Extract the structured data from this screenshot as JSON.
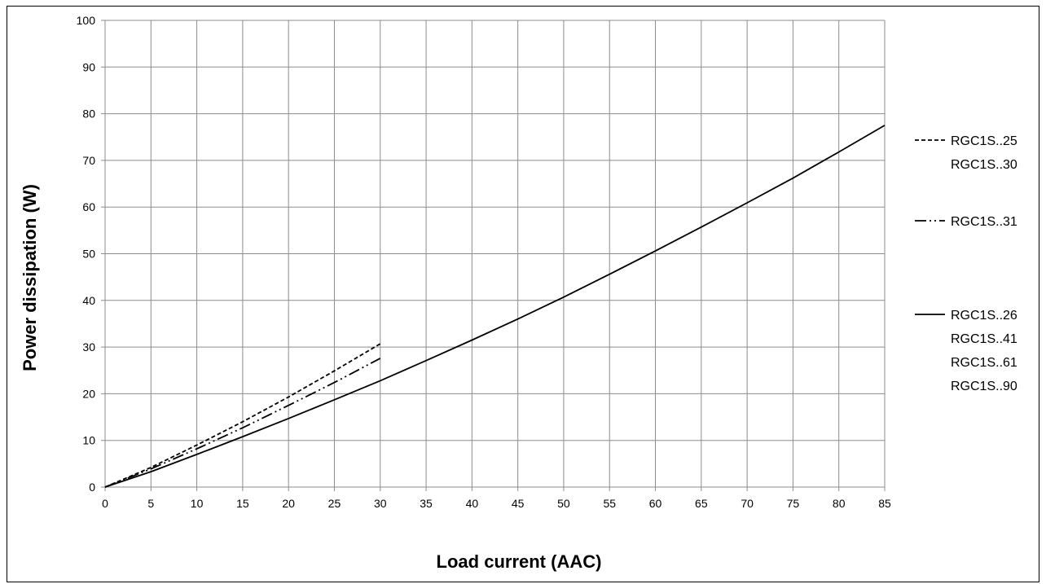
{
  "chart_data": {
    "type": "line",
    "title": "",
    "xlabel": "Load current (AAC)",
    "ylabel": "Power dissipation (W)",
    "xlim": [
      0,
      85
    ],
    "ylim": [
      0,
      100
    ],
    "x_ticks": [
      "0",
      "5",
      "10",
      "15",
      "20",
      "25",
      "30",
      "35",
      "40",
      "45",
      "50",
      "55",
      "60",
      "65",
      "70",
      "75",
      "80",
      "85"
    ],
    "y_ticks": [
      "0",
      "10",
      "20",
      "30",
      "40",
      "50",
      "60",
      "70",
      "80",
      "90",
      "100"
    ],
    "grid": true,
    "legend_position": "right",
    "series": [
      {
        "style": "dashed",
        "labels": [
          "RGC1S..25",
          "RGC1S..30"
        ],
        "x": [
          0,
          5,
          10,
          15,
          20,
          25,
          30
        ],
        "y": [
          0,
          4.2,
          9.0,
          14.0,
          19.3,
          24.9,
          30.7
        ]
      },
      {
        "style": "dash-dot-dot",
        "labels": [
          "RGC1S..31"
        ],
        "x": [
          0,
          5,
          10,
          15,
          20,
          25,
          30
        ],
        "y": [
          0,
          3.9,
          8.2,
          12.7,
          17.5,
          22.4,
          27.6
        ]
      },
      {
        "style": "solid",
        "labels": [
          "RGC1S..26",
          "RGC1S..41",
          "RGC1S..61",
          "RGC1S..90"
        ],
        "x": [
          0,
          5,
          10,
          15,
          20,
          25,
          30,
          35,
          40,
          45,
          50,
          55,
          60,
          65,
          70,
          75,
          80,
          85
        ],
        "y": [
          0,
          3.3,
          7.0,
          10.8,
          14.7,
          18.7,
          22.8,
          27.1,
          31.5,
          36.0,
          40.7,
          45.6,
          50.6,
          55.7,
          60.9,
          66.2,
          71.8,
          77.5
        ]
      }
    ]
  }
}
